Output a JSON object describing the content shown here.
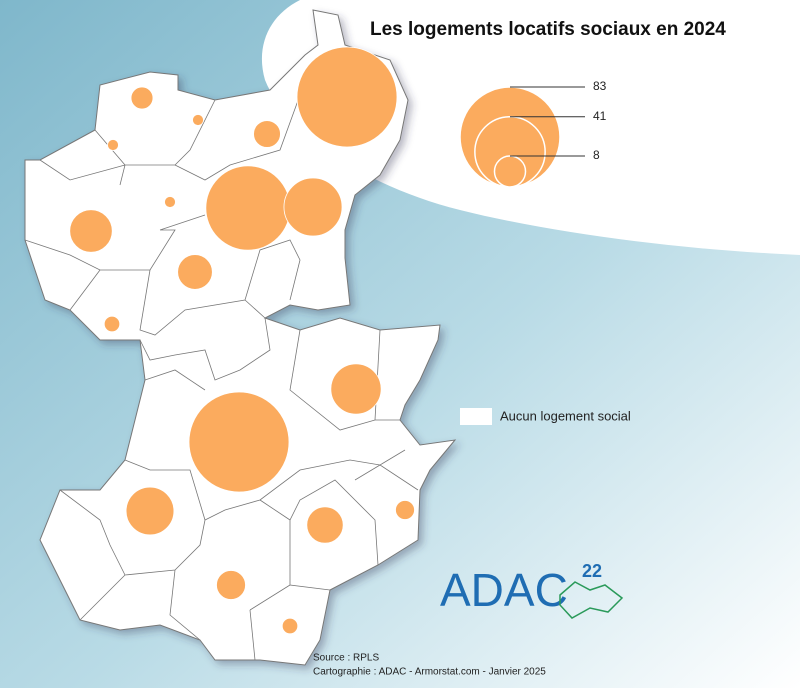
{
  "title": "Les logements locatifs sociaux en 2024",
  "legend": {
    "values": [
      83,
      41,
      8
    ],
    "color": "#fbab5e",
    "none_label": "Aucun logement social"
  },
  "circles": {
    "values": [
      83,
      4,
      1,
      6,
      1,
      59,
      28,
      1,
      15,
      10,
      2,
      21,
      83,
      19,
      11,
      3,
      7,
      2
    ]
  },
  "logo": {
    "name": "ADAC",
    "number": "22"
  },
  "source": {
    "line1": "Source : RPLS",
    "line2": "Cartographie : ADAC - Armorstat.com - Janvier 2025"
  }
}
